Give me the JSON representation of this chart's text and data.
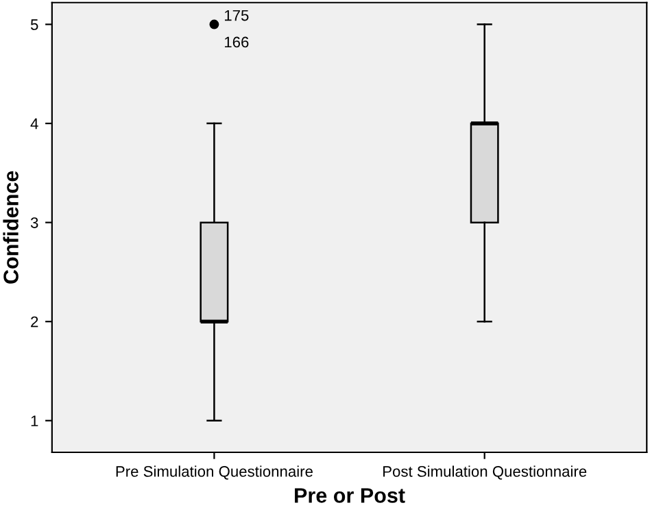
{
  "chart_data": {
    "type": "box",
    "xlabel": "Pre or Post",
    "ylabel": "Confidence",
    "categories": [
      "Pre Simulation Questionnaire",
      "Post Simulation Questionnaire"
    ],
    "boxes": [
      {
        "low": 1,
        "q1": 2,
        "median": 2,
        "q3": 3,
        "high": 4,
        "outliers": [
          5
        ]
      },
      {
        "low": 2,
        "q1": 3,
        "median": 4,
        "q3": 4,
        "high": 5
      }
    ],
    "color": "#d9d9d9",
    "ylim": [
      0.68,
      5.22
    ],
    "yticks": [
      1,
      2,
      3,
      4,
      5
    ],
    "grid": false,
    "annotations": [
      "175",
      "166"
    ]
  }
}
